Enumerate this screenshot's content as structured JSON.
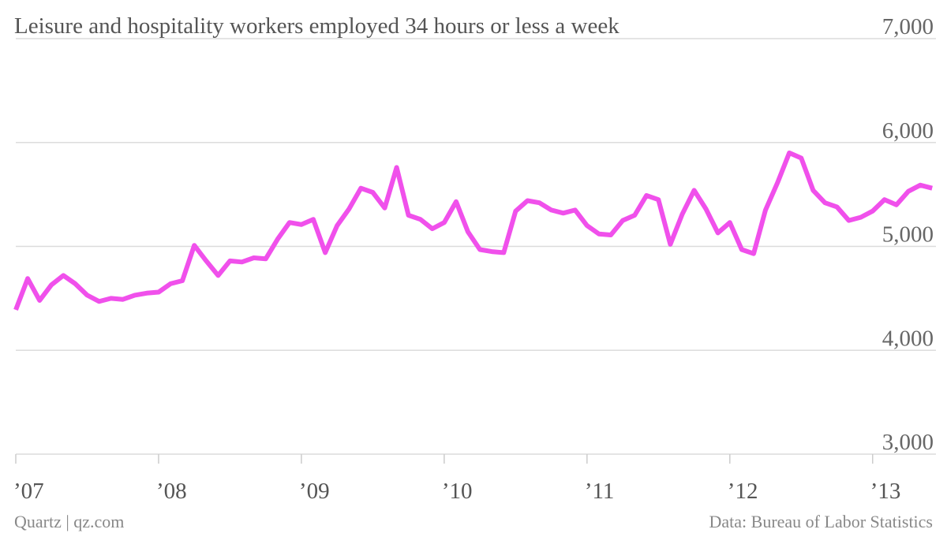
{
  "chart_data": {
    "type": "line",
    "title": "Leisure and hospitality workers employed 34 hours or less a week",
    "source": "Data: Bureau of Labor Statistics",
    "credit": "Quartz | qz.com",
    "categories": [
      "’07",
      null,
      null,
      null,
      null,
      null,
      null,
      null,
      null,
      null,
      null,
      null,
      "’08",
      null,
      null,
      null,
      null,
      null,
      null,
      null,
      null,
      null,
      null,
      null,
      "’09",
      null,
      null,
      null,
      null,
      null,
      null,
      null,
      null,
      null,
      null,
      null,
      "’10",
      null,
      null,
      null,
      null,
      null,
      null,
      null,
      null,
      null,
      null,
      null,
      "’11",
      null,
      null,
      null,
      null,
      null,
      null,
      null,
      null,
      null,
      null,
      null,
      "’12",
      null,
      null,
      null,
      null,
      null,
      null,
      null,
      null,
      null,
      null,
      null,
      "’13",
      null,
      null,
      null,
      null,
      null
    ],
    "series": [
      {
        "name": "Workers",
        "color": "#f050eb",
        "values": [
          4390,
          4690,
          4480,
          4630,
          4720,
          4640,
          4530,
          4470,
          4500,
          4490,
          4530,
          4550,
          4560,
          4640,
          4670,
          5010,
          4860,
          4720,
          4860,
          4850,
          4890,
          4880,
          5070,
          5230,
          5210,
          5260,
          4940,
          5200,
          5360,
          5560,
          5520,
          5370,
          5760,
          5300,
          5260,
          5170,
          5230,
          5430,
          5140,
          4970,
          4950,
          4940,
          5340,
          5440,
          5420,
          5350,
          5320,
          5350,
          5200,
          5120,
          5110,
          5250,
          5300,
          5490,
          5450,
          5020,
          5310,
          5540,
          5360,
          5130,
          5230,
          4970,
          4930,
          5350,
          5610,
          5900,
          5850,
          5540,
          5420,
          5380,
          5250,
          5280,
          5340,
          5450,
          5400,
          5530,
          5590,
          5560
        ]
      }
    ],
    "ylim": [
      3000,
      7000
    ],
    "yticks": [
      {
        "value": 3000,
        "label": "3,000"
      },
      {
        "value": 4000,
        "label": "4,000"
      },
      {
        "value": 5000,
        "label": "5,000"
      },
      {
        "value": 6000,
        "label": "6,000"
      },
      {
        "value": 7000,
        "label": "7,000"
      }
    ],
    "grid": true
  }
}
